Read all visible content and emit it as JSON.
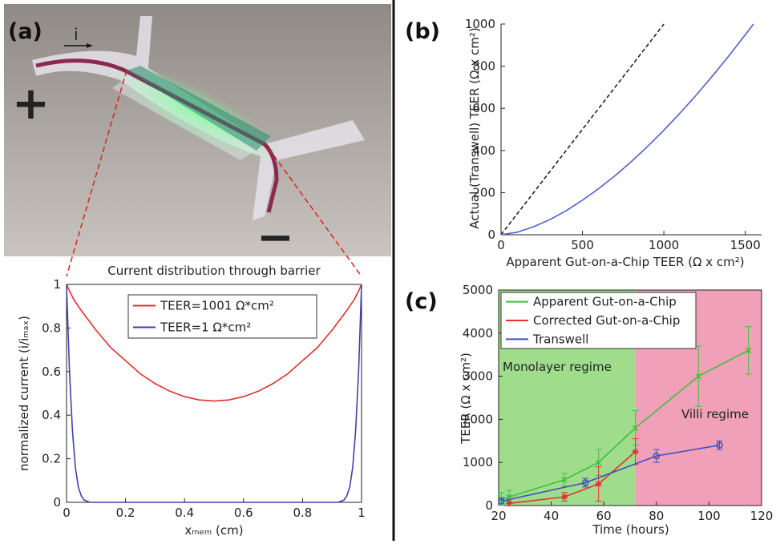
{
  "panel_labels": [
    "(a)",
    "(b)",
    "(c)"
  ],
  "photo": {
    "current_label": "i",
    "plus": "+",
    "minus": "−"
  },
  "chart_data": [
    {
      "type": "line",
      "title": "Current distribution through barrier",
      "xlabel": "xₘₑₘ (cm)",
      "ylabel": "normalized current (i/iₘₐₓ)",
      "xlim": [
        0,
        1
      ],
      "ylim": [
        0,
        1
      ],
      "xticks": [
        0,
        0.2,
        0.4,
        0.6,
        0.8,
        1
      ],
      "yticks": [
        0,
        0.2,
        0.4,
        0.6,
        0.8,
        1
      ],
      "frame": "box",
      "legend": "upper center",
      "series": [
        {
          "name": "TEER=1001 Ω*cm²",
          "color": "#e03030",
          "x": [
            0,
            0.01,
            0.025,
            0.05,
            0.1,
            0.15,
            0.2,
            0.25,
            0.3,
            0.35,
            0.4,
            0.45,
            0.5,
            0.55,
            0.6,
            0.65,
            0.7,
            0.75,
            0.8,
            0.85,
            0.9,
            0.95,
            0.975,
            0.99,
            1
          ],
          "values": [
            1,
            0.97,
            0.93,
            0.88,
            0.79,
            0.71,
            0.65,
            0.59,
            0.545,
            0.51,
            0.485,
            0.47,
            0.465,
            0.47,
            0.485,
            0.51,
            0.545,
            0.59,
            0.65,
            0.71,
            0.79,
            0.88,
            0.93,
            0.97,
            1
          ]
        },
        {
          "name": "TEER=1 Ω*cm²",
          "color": "#4040b0",
          "x": [
            0,
            0.005,
            0.01,
            0.02,
            0.03,
            0.04,
            0.05,
            0.06,
            0.08,
            0.5,
            0.92,
            0.94,
            0.95,
            0.96,
            0.97,
            0.98,
            0.99,
            0.995,
            1
          ],
          "values": [
            1,
            0.8,
            0.6,
            0.33,
            0.16,
            0.07,
            0.03,
            0.01,
            0,
            0,
            0,
            0.01,
            0.03,
            0.07,
            0.16,
            0.33,
            0.6,
            0.8,
            1
          ]
        }
      ]
    },
    {
      "type": "line",
      "xlabel": "Apparent Gut-on-a-Chip TEER (Ω x cm²)",
      "ylabel": "Actual (Transwell) TEER (Ω x cm²)",
      "xlim": [
        0,
        1600
      ],
      "ylim": [
        0,
        1000
      ],
      "xticks": [
        0,
        500,
        1000,
        1500
      ],
      "yticks": [
        0,
        200,
        400,
        600,
        800,
        1000
      ],
      "frame": "axes",
      "series": [
        {
          "color": "#222222",
          "dash": true,
          "x": [
            0,
            1000
          ],
          "values": [
            0,
            1000
          ]
        },
        {
          "color": "#5060c8",
          "x": [
            0,
            100,
            200,
            300,
            400,
            500,
            600,
            700,
            800,
            900,
            1000,
            1100,
            1200,
            1300,
            1400,
            1500,
            1550
          ],
          "values": [
            0,
            12,
            38,
            72,
            114,
            164,
            219,
            280,
            347,
            419,
            496,
            578,
            664,
            755,
            850,
            949,
            1000
          ]
        }
      ]
    },
    {
      "type": "line",
      "xlabel": "Time (hours)",
      "ylabel": "TEER (Ω x cm²)",
      "xlim": [
        20,
        120
      ],
      "ylim": [
        0,
        5000
      ],
      "xticks": [
        20,
        40,
        60,
        80,
        100,
        120
      ],
      "yticks": [
        0,
        1000,
        2000,
        3000,
        4000,
        5000
      ],
      "frame": "box",
      "legend": "upper left",
      "regions": [
        {
          "label": "Monolayer regime",
          "from": 20,
          "to": 72,
          "color": "#9fdc8c"
        },
        {
          "label": "Villi regime",
          "from": 72,
          "to": 120,
          "color": "#f0a0b8"
        }
      ],
      "series": [
        {
          "name": "Apparent Gut-on-a-Chip",
          "color": "#40c040",
          "marker": "x",
          "x": [
            21,
            24,
            45,
            58,
            72,
            96,
            115
          ],
          "values": [
            150,
            200,
            600,
            1000,
            1800,
            3000,
            3600
          ],
          "errors": [
            150,
            150,
            150,
            300,
            400,
            700,
            550
          ]
        },
        {
          "name": "Corrected Gut-on-a-Chip",
          "color": "#e83030",
          "marker": "*",
          "x": [
            24,
            45,
            58,
            72
          ],
          "values": [
            50,
            200,
            500,
            1250
          ],
          "errors": [
            50,
            100,
            400,
            300
          ]
        },
        {
          "name": "Transwell",
          "color": "#4050c0",
          "marker": "o",
          "x": [
            21,
            53,
            80,
            104
          ],
          "values": [
            100,
            530,
            1150,
            1400
          ],
          "errors": [
            60,
            100,
            150,
            100
          ]
        }
      ]
    }
  ]
}
